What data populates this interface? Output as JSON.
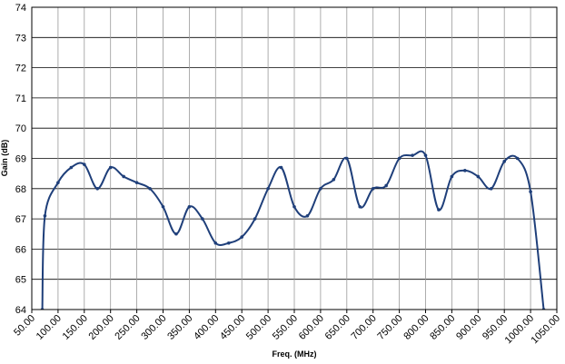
{
  "chart_data": {
    "type": "line",
    "x_label": "Freq. (MHz)",
    "y_label": "Gain (dB)",
    "x": [
      70,
      75,
      100,
      125,
      150,
      175,
      200,
      225,
      250,
      275,
      300,
      325,
      350,
      375,
      400,
      425,
      450,
      475,
      500,
      525,
      550,
      575,
      600,
      625,
      650,
      675,
      700,
      725,
      750,
      775,
      800,
      825,
      850,
      875,
      900,
      925,
      950,
      975,
      1000,
      1025
    ],
    "series": [
      {
        "name": "Gain",
        "color": "#1f3f7a",
        "values": [
          64,
          67.1,
          68.2,
          68.7,
          68.8,
          68.0,
          68.7,
          68.4,
          68.2,
          68.0,
          67.4,
          66.5,
          67.4,
          67.0,
          66.2,
          66.2,
          66.4,
          67.0,
          68.0,
          68.7,
          67.4,
          67.1,
          68.0,
          68.3,
          69.0,
          67.4,
          68.0,
          68.1,
          69.0,
          69.1,
          69.1,
          67.3,
          68.4,
          68.6,
          68.4,
          68.0,
          68.9,
          69.0,
          67.9,
          64
        ]
      }
    ],
    "xlim": [
      50,
      1050
    ],
    "xticks": [
      {
        "value": 50,
        "label": "50.00"
      },
      {
        "value": 100,
        "label": "100.00"
      },
      {
        "value": 150,
        "label": "150.00"
      },
      {
        "value": 200,
        "label": "200.00"
      },
      {
        "value": 250,
        "label": "250.00"
      },
      {
        "value": 300,
        "label": "300.00"
      },
      {
        "value": 350,
        "label": "350.00"
      },
      {
        "value": 400,
        "label": "400.00"
      },
      {
        "value": 450,
        "label": "450.00"
      },
      {
        "value": 500,
        "label": "500.00"
      },
      {
        "value": 550,
        "label": "550.00"
      },
      {
        "value": 600,
        "label": "600.00"
      },
      {
        "value": 650,
        "label": "650.00"
      },
      {
        "value": 700,
        "label": "700.00"
      },
      {
        "value": 750,
        "label": "750.00"
      },
      {
        "value": 800,
        "label": "800.00"
      },
      {
        "value": 850,
        "label": "850.00"
      },
      {
        "value": 900,
        "label": "900.00"
      },
      {
        "value": 950,
        "label": "950.00"
      },
      {
        "value": 1000,
        "label": "1000.00"
      },
      {
        "value": 1050,
        "label": "1050.00"
      }
    ],
    "ylim": [
      64,
      74
    ],
    "yticks": [
      64,
      65,
      66,
      67,
      68,
      69,
      70,
      71,
      72,
      73,
      74
    ],
    "grid": true
  }
}
